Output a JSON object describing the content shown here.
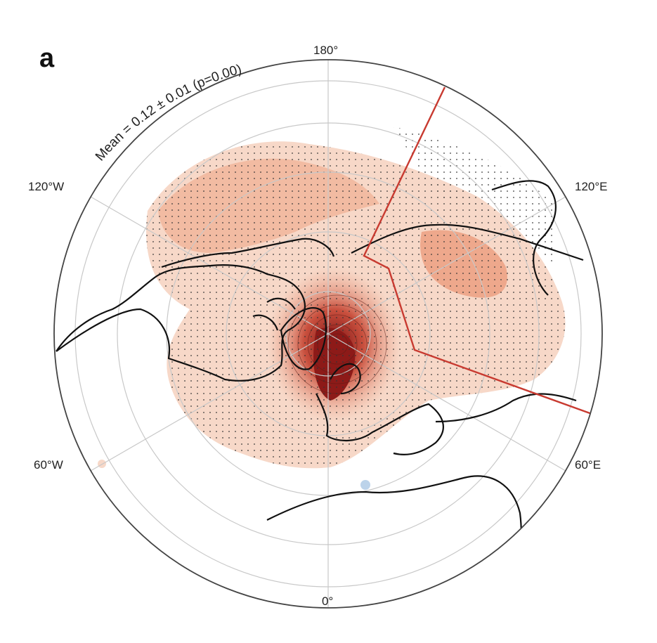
{
  "panel_letter": "a",
  "mean_annotation": "Mean = 0.12 ± 0.01 (p=0.00)",
  "longitude_labels": {
    "top": "180°",
    "bottom": "0°",
    "upper_left": "120°W",
    "upper_right": "120°E",
    "lower_left": "60°W",
    "lower_right": "60°E"
  },
  "colors": {
    "positive_light": "#f7d8c8",
    "positive_mid": "#eea88c",
    "positive_strong": "#c9503e",
    "positive_max": "#7a0f12",
    "negative_light": "#bcd3ea",
    "coastline": "#111111",
    "graticule": "#c8c8c8",
    "region_box": "#c83a30",
    "border": "#444444"
  },
  "map_features": {
    "projection": "north-polar stereographic",
    "stippling": "significance dots",
    "highlighted_region": "red sector box (Eurasia, 60°E–120°E)"
  }
}
